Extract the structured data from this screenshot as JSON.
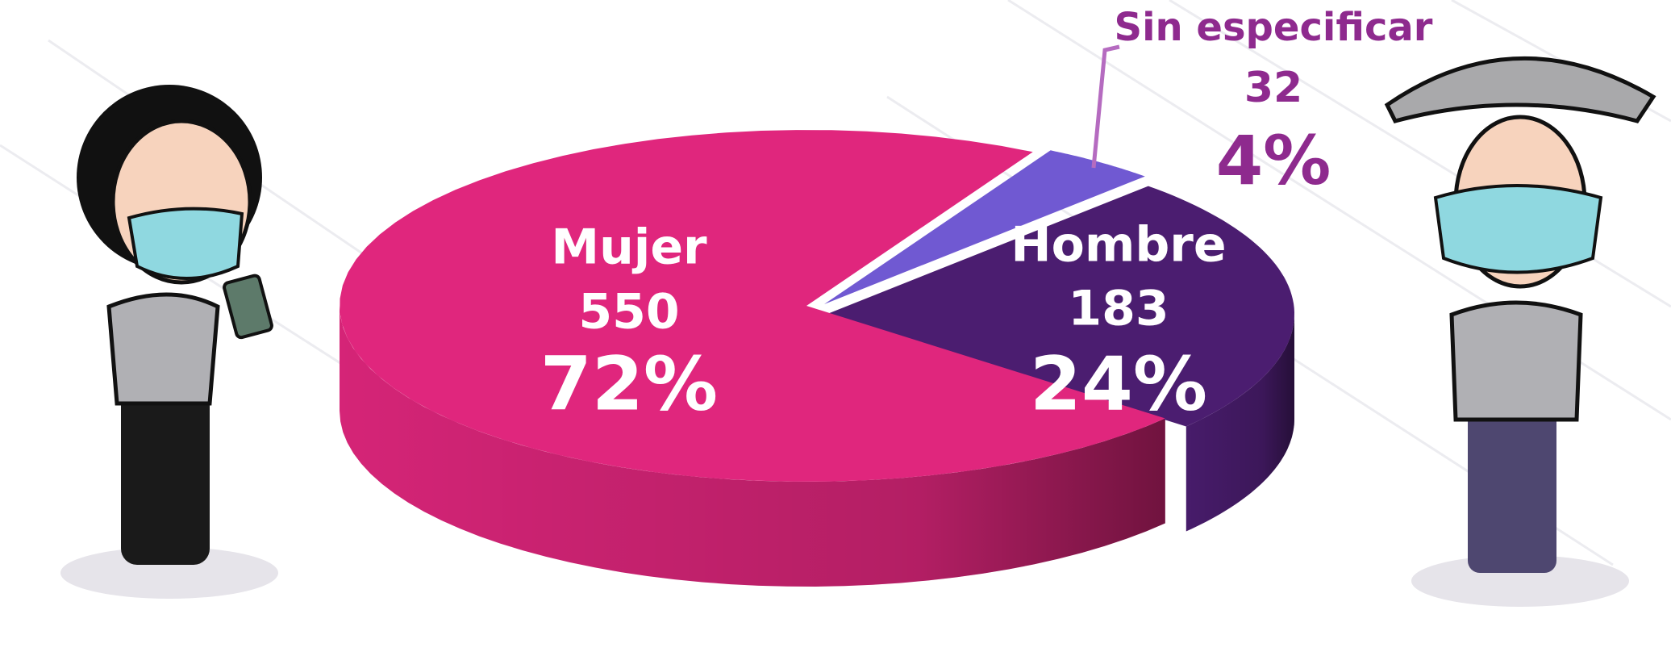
{
  "chart_data": {
    "type": "pie",
    "categories": [
      "Mujer",
      "Hombre",
      "Sin especificar"
    ],
    "counts": [
      550,
      183,
      32
    ],
    "values": [
      72,
      24,
      4
    ],
    "value_labels": [
      "72%",
      "24%",
      "4%"
    ],
    "colors": [
      "#e0267d",
      "#4b1d70",
      "#7059d2"
    ]
  }
}
